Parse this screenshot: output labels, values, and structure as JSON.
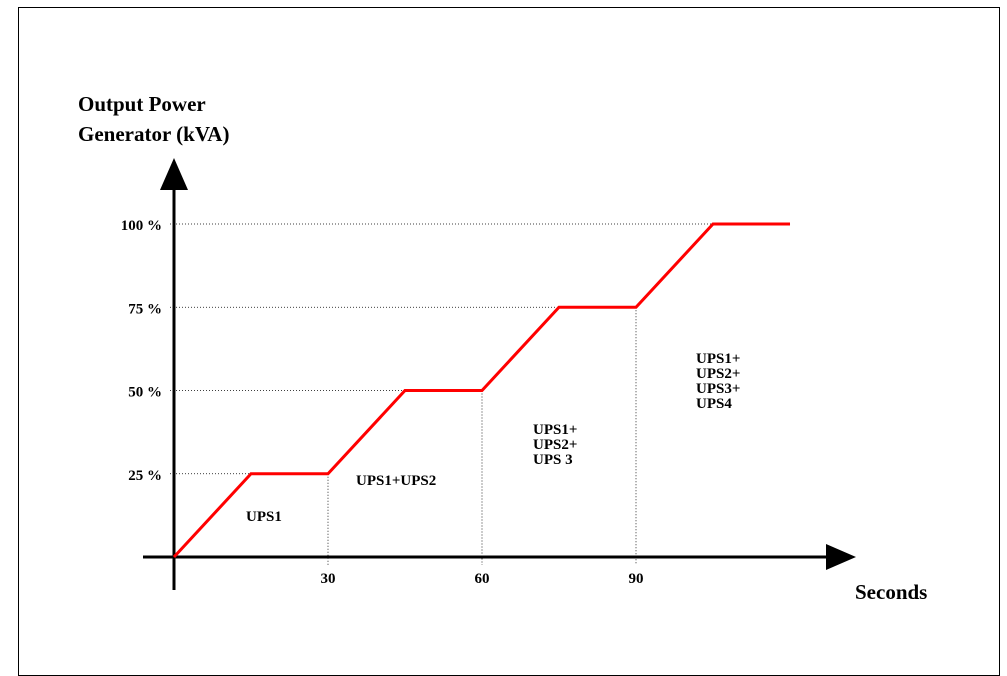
{
  "chart_data": {
    "type": "line",
    "ylabel_line1": "Output Power",
    "ylabel_line2": "Generator (kVA)",
    "xlabel": "Seconds",
    "y_ticks": [
      "25 %",
      "50 %",
      "75 %",
      "100 %"
    ],
    "x_ticks": [
      "30",
      "60",
      "90"
    ],
    "series": [
      {
        "x": [
          0,
          15,
          30,
          45,
          60,
          75,
          90,
          105,
          120
        ],
        "y": [
          0,
          25,
          25,
          50,
          50,
          75,
          75,
          100,
          100
        ]
      }
    ],
    "line_color": "#ff0000",
    "grid": "dotted reference lines at ticks",
    "regions": [
      {
        "lines": [
          "UPS1"
        ]
      },
      {
        "lines": [
          "UPS1+UPS2"
        ]
      },
      {
        "lines": [
          "UPS1+",
          "UPS2+",
          "UPS 3"
        ]
      },
      {
        "lines": [
          "UPS1+",
          "UPS2+",
          "UPS3+",
          "UPS4"
        ]
      }
    ]
  }
}
